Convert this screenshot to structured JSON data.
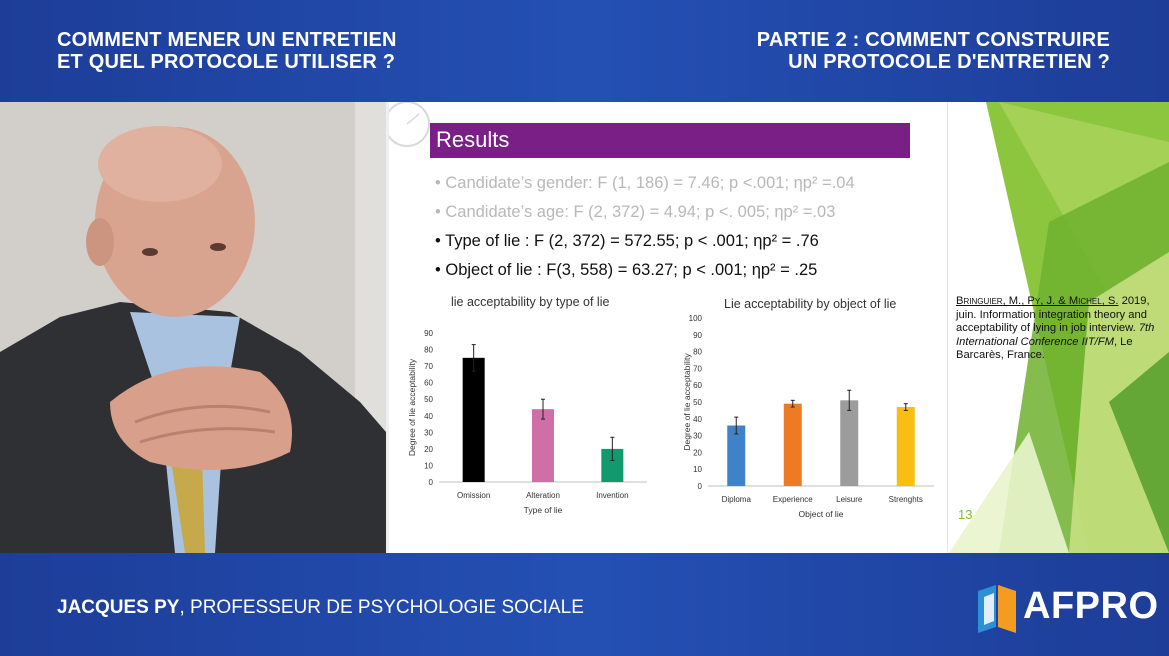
{
  "header": {
    "left_line1": "COMMENT MENER UN ENTRETIEN",
    "left_line2": "ET QUEL PROTOCOLE UTILISER ?",
    "right_line1": "PARTIE 2 : COMMENT CONSTRUIRE",
    "right_line2": "UN PROTOCOLE D'ENTRETIEN ?"
  },
  "footer": {
    "speaker_name": "JACQUES PY",
    "speaker_role": ", PROFESSEUR DE PSYCHOLOGIE SOCIALE",
    "logo_text": "AFPRO"
  },
  "slide": {
    "title": "Results",
    "stats": [
      "• Candidate’s gender:  F (1, 186) = 7.46; p <.001; ηp² =.04",
      "• Candidate’s age: F (2, 372) = 4.94; p <. 005; ηp² =.03",
      "• Type of lie : F (2, 372) = 572.55; p < .001; ηp² = .76",
      "• Object of lie : F(3, 558) = 63.27; p < .001; ηp² = .25"
    ],
    "citation_authors": "Bringuier, M., Py, J. & Michel, S.",
    "citation_rest": " 2019, juin. Information integration theory and acceptability of lying in job interview. ",
    "citation_conf": "7th International Conference IIT/FM",
    "citation_place": ", Le Barcarès, France.",
    "page_number": "13"
  },
  "chart_data": [
    {
      "type": "bar",
      "title": "lie acceptability by type of lie",
      "xlabel": "Type of lie",
      "ylabel": "Degree of lie acceptability",
      "categories": [
        "Omission",
        "Alteration",
        "Invention"
      ],
      "values": [
        75,
        44,
        20
      ],
      "errors": [
        8,
        6,
        7
      ],
      "colors": [
        "#000000",
        "#cf6fa8",
        "#129a6e"
      ],
      "ylim": [
        0,
        90
      ],
      "yticks": [
        0,
        10,
        20,
        30,
        40,
        50,
        60,
        70,
        80,
        90
      ]
    },
    {
      "type": "bar",
      "title": "Lie acceptability by object of lie",
      "xlabel": "Object of lie",
      "ylabel": "Degree of lie acceptability",
      "categories": [
        "Diploma",
        "Experience",
        "Leisure",
        "Strenghts"
      ],
      "values": [
        36,
        49,
        51,
        47
      ],
      "errors": [
        5,
        2,
        6,
        2
      ],
      "colors": [
        "#3f82c8",
        "#ee7a24",
        "#9c9c9c",
        "#f8bf12"
      ],
      "ylim": [
        0,
        100
      ],
      "yticks": [
        0,
        10,
        20,
        30,
        40,
        50,
        60,
        70,
        80,
        90,
        100
      ]
    }
  ]
}
